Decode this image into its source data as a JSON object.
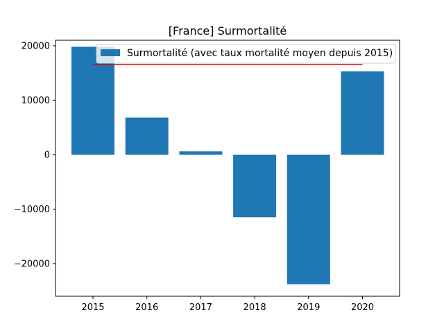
{
  "chart_data": {
    "type": "bar",
    "title": "[France] Surmortalité",
    "xlabel": "",
    "ylabel": "",
    "categories": [
      "2015",
      "2016",
      "2017",
      "2018",
      "2019",
      "2020"
    ],
    "series": [
      {
        "name": "Surmortalité (avec taux mortalité moyen depuis 2015)",
        "values": [
          19800,
          6800,
          600,
          -11500,
          -23800,
          15300
        ]
      }
    ],
    "reference_line": {
      "value": 16500,
      "from": "2015",
      "to": "2020"
    },
    "yticks": [
      -20000,
      -10000,
      0,
      10000,
      20000
    ],
    "ylim": [
      -26000,
      21000
    ],
    "grid": false,
    "legend_position": "top-right",
    "colors": {
      "bar": "#1f77b4",
      "reference_line": "#e00000"
    }
  }
}
